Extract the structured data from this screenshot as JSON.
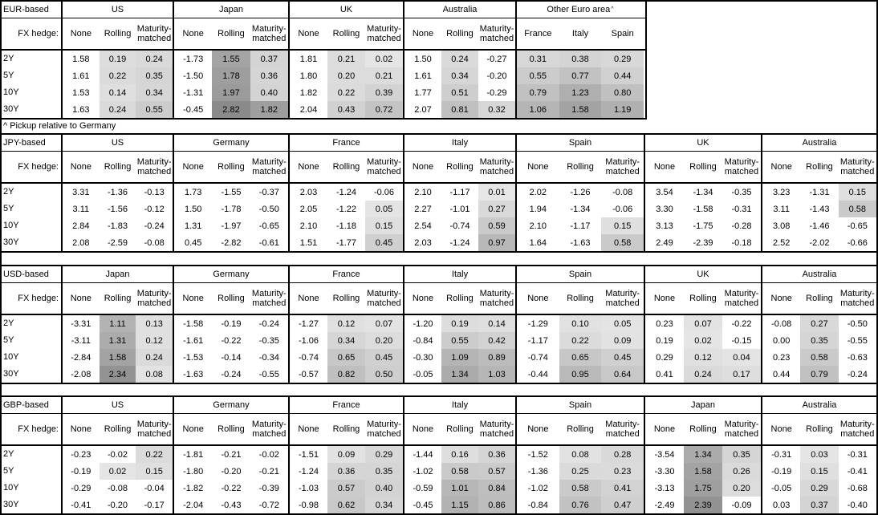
{
  "note": "^ Pickup relative to Germany",
  "labels": {
    "fx_hedge": "FX hedge:",
    "subcols": [
      "None",
      "Rolling",
      "Maturity-matched"
    ],
    "tenors": [
      "2Y",
      "5Y",
      "10Y",
      "30Y"
    ]
  },
  "heatmap": {
    "negative_color": "#ffffff",
    "border_color": "#000000",
    "text_color": "#000000",
    "stops": [
      [
        0,
        230
      ],
      [
        0.5,
        206
      ],
      [
        1.0,
        183
      ],
      [
        1.6,
        162
      ],
      [
        2.9,
        136
      ]
    ]
  },
  "tables": [
    {
      "base": "EUR-based",
      "groups": [
        {
          "name": "US",
          "shade_cols": [
            1,
            2
          ],
          "rows": [
            [
              "1.58",
              "0.19",
              "0.24"
            ],
            [
              "1.61",
              "0.22",
              "0.35"
            ],
            [
              "1.53",
              "0.14",
              "0.34"
            ],
            [
              "1.63",
              "0.24",
              "0.55"
            ]
          ]
        },
        {
          "name": "Japan",
          "shade_cols": [
            1,
            2
          ],
          "rows": [
            [
              "-1.73",
              "1.55",
              "0.37"
            ],
            [
              "-1.50",
              "1.78",
              "0.36"
            ],
            [
              "-1.31",
              "1.97",
              "0.40"
            ],
            [
              "-0.45",
              "2.82",
              "1.82"
            ]
          ]
        },
        {
          "name": "UK",
          "shade_cols": [
            1,
            2
          ],
          "rows": [
            [
              "1.81",
              "0.21",
              "0.02"
            ],
            [
              "1.80",
              "0.20",
              "0.21"
            ],
            [
              "1.82",
              "0.22",
              "0.39"
            ],
            [
              "2.04",
              "0.43",
              "0.72"
            ]
          ]
        },
        {
          "name": "Australia",
          "shade_cols": [
            1,
            2
          ],
          "rows": [
            [
              "1.50",
              "0.24",
              "-0.27"
            ],
            [
              "1.61",
              "0.34",
              "-0.20"
            ],
            [
              "1.77",
              "0.51",
              "-0.29"
            ],
            [
              "2.07",
              "0.81",
              "0.32"
            ]
          ]
        },
        {
          "name": "Other Euro area",
          "sup": "^",
          "cols": [
            "France",
            "Italy",
            "Spain"
          ],
          "shade_cols": [
            0,
            1,
            2
          ],
          "rows": [
            [
              "0.31",
              "0.38",
              "0.29"
            ],
            [
              "0.55",
              "0.77",
              "0.44"
            ],
            [
              "0.79",
              "1.23",
              "0.80"
            ],
            [
              "1.06",
              "1.58",
              "1.19"
            ]
          ]
        }
      ]
    },
    {
      "base": "JPY-based",
      "groups": [
        {
          "name": "US",
          "shade_cols": [
            1,
            2
          ],
          "rows": [
            [
              "3.31",
              "-1.36",
              "-0.13"
            ],
            [
              "3.11",
              "-1.56",
              "-0.12"
            ],
            [
              "2.84",
              "-1.83",
              "-0.24"
            ],
            [
              "2.08",
              "-2.59",
              "-0.08"
            ]
          ]
        },
        {
          "name": "Germany",
          "shade_cols": [
            1,
            2
          ],
          "rows": [
            [
              "1.73",
              "-1.55",
              "-0.37"
            ],
            [
              "1.50",
              "-1.78",
              "-0.50"
            ],
            [
              "1.31",
              "-1.97",
              "-0.65"
            ],
            [
              "0.45",
              "-2.82",
              "-0.61"
            ]
          ]
        },
        {
          "name": "France",
          "shade_cols": [
            1,
            2
          ],
          "rows": [
            [
              "2.03",
              "-1.24",
              "-0.06"
            ],
            [
              "2.05",
              "-1.22",
              "0.05"
            ],
            [
              "2.10",
              "-1.18",
              "0.15"
            ],
            [
              "1.51",
              "-1.77",
              "0.45"
            ]
          ]
        },
        {
          "name": "Italy",
          "shade_cols": [
            1,
            2
          ],
          "rows": [
            [
              "2.10",
              "-1.17",
              "0.01"
            ],
            [
              "2.27",
              "-1.01",
              "0.27"
            ],
            [
              "2.54",
              "-0.74",
              "0.59"
            ],
            [
              "2.03",
              "-1.24",
              "0.97"
            ]
          ]
        },
        {
          "name": "Spain",
          "shade_cols": [
            1,
            2
          ],
          "rows": [
            [
              "2.02",
              "-1.26",
              "-0.08"
            ],
            [
              "1.94",
              "-1.34",
              "-0.06"
            ],
            [
              "2.10",
              "-1.17",
              "0.15"
            ],
            [
              "1.64",
              "-1.63",
              "0.58"
            ]
          ]
        },
        {
          "name": "UK",
          "shade_cols": [
            1,
            2
          ],
          "rows": [
            [
              "3.54",
              "-1.34",
              "-0.35"
            ],
            [
              "3.30",
              "-1.58",
              "-0.31"
            ],
            [
              "3.13",
              "-1.75",
              "-0.28"
            ],
            [
              "2.49",
              "-2.39",
              "-0.18"
            ]
          ]
        },
        {
          "name": "Australia",
          "shade_cols": [
            1,
            2
          ],
          "rows": [
            [
              "3.23",
              "-1.31",
              "0.15"
            ],
            [
              "3.11",
              "-1.43",
              "0.58"
            ],
            [
              "3.08",
              "-1.46",
              "-0.65"
            ],
            [
              "2.52",
              "-2.02",
              "-0.66"
            ]
          ]
        }
      ]
    },
    {
      "base": "USD-based",
      "groups": [
        {
          "name": "Japan",
          "shade_cols": [
            1,
            2
          ],
          "rows": [
            [
              "-3.31",
              "1.11",
              "0.13"
            ],
            [
              "-3.11",
              "1.31",
              "0.12"
            ],
            [
              "-2.84",
              "1.58",
              "0.24"
            ],
            [
              "-2.08",
              "2.34",
              "0.08"
            ]
          ]
        },
        {
          "name": "Germany",
          "shade_cols": [
            1,
            2
          ],
          "rows": [
            [
              "-1.58",
              "-0.19",
              "-0.24"
            ],
            [
              "-1.61",
              "-0.22",
              "-0.35"
            ],
            [
              "-1.53",
              "-0.14",
              "-0.34"
            ],
            [
              "-1.63",
              "-0.24",
              "-0.55"
            ]
          ]
        },
        {
          "name": "France",
          "shade_cols": [
            1,
            2
          ],
          "rows": [
            [
              "-1.27",
              "0.12",
              "0.07"
            ],
            [
              "-1.06",
              "0.34",
              "0.20"
            ],
            [
              "-0.74",
              "0.65",
              "0.45"
            ],
            [
              "-0.57",
              "0.82",
              "0.50"
            ]
          ]
        },
        {
          "name": "Italy",
          "shade_cols": [
            1,
            2
          ],
          "rows": [
            [
              "-1.20",
              "0.19",
              "0.14"
            ],
            [
              "-0.84",
              "0.55",
              "0.42"
            ],
            [
              "-0.30",
              "1.09",
              "0.89"
            ],
            [
              "-0.05",
              "1.34",
              "1.03"
            ]
          ]
        },
        {
          "name": "Spain",
          "shade_cols": [
            1,
            2
          ],
          "rows": [
            [
              "-1.29",
              "0.10",
              "0.05"
            ],
            [
              "-1.17",
              "0.22",
              "0.09"
            ],
            [
              "-0.74",
              "0.65",
              "0.45"
            ],
            [
              "-0.44",
              "0.95",
              "0.64"
            ]
          ]
        },
        {
          "name": "UK",
          "shade_cols": [
            1,
            2
          ],
          "rows": [
            [
              "0.23",
              "0.07",
              "-0.22"
            ],
            [
              "0.19",
              "0.02",
              "-0.15"
            ],
            [
              "0.29",
              "0.12",
              "0.04"
            ],
            [
              "0.41",
              "0.24",
              "0.17"
            ]
          ]
        },
        {
          "name": "Australia",
          "shade_cols": [
            1,
            2
          ],
          "rows": [
            [
              "-0.08",
              "0.27",
              "-0.50"
            ],
            [
              "0.00",
              "0.35",
              "-0.55"
            ],
            [
              "0.23",
              "0.58",
              "-0.63"
            ],
            [
              "0.44",
              "0.79",
              "-0.24"
            ]
          ]
        }
      ]
    },
    {
      "base": "GBP-based",
      "groups": [
        {
          "name": "US",
          "shade_cols": [
            1,
            2
          ],
          "rows": [
            [
              "-0.23",
              "-0.02",
              "0.22"
            ],
            [
              "-0.19",
              "0.02",
              "0.15"
            ],
            [
              "-0.29",
              "-0.08",
              "-0.04"
            ],
            [
              "-0.41",
              "-0.20",
              "-0.17"
            ]
          ]
        },
        {
          "name": "Germany",
          "shade_cols": [
            1,
            2
          ],
          "rows": [
            [
              "-1.81",
              "-0.21",
              "-0.02"
            ],
            [
              "-1.80",
              "-0.20",
              "-0.21"
            ],
            [
              "-1.82",
              "-0.22",
              "-0.39"
            ],
            [
              "-2.04",
              "-0.43",
              "-0.72"
            ]
          ]
        },
        {
          "name": "France",
          "shade_cols": [
            1,
            2
          ],
          "rows": [
            [
              "-1.51",
              "0.09",
              "0.29"
            ],
            [
              "-1.24",
              "0.36",
              "0.35"
            ],
            [
              "-1.03",
              "0.57",
              "0.40"
            ],
            [
              "-0.98",
              "0.62",
              "0.34"
            ]
          ]
        },
        {
          "name": "Italy",
          "shade_cols": [
            1,
            2
          ],
          "rows": [
            [
              "-1.44",
              "0.16",
              "0.36"
            ],
            [
              "-1.02",
              "0.58",
              "0.57"
            ],
            [
              "-0.59",
              "1.01",
              "0.84"
            ],
            [
              "-0.45",
              "1.15",
              "0.86"
            ]
          ]
        },
        {
          "name": "Spain",
          "shade_cols": [
            1,
            2
          ],
          "rows": [
            [
              "-1.52",
              "0.08",
              "0.28"
            ],
            [
              "-1.36",
              "0.25",
              "0.23"
            ],
            [
              "-1.02",
              "0.58",
              "0.41"
            ],
            [
              "-0.84",
              "0.76",
              "0.47"
            ]
          ]
        },
        {
          "name": "Japan",
          "shade_cols": [
            1,
            2
          ],
          "rows": [
            [
              "-3.54",
              "1.34",
              "0.35"
            ],
            [
              "-3.30",
              "1.58",
              "0.26"
            ],
            [
              "-3.13",
              "1.75",
              "0.20"
            ],
            [
              "-2.49",
              "2.39",
              "-0.09"
            ]
          ]
        },
        {
          "name": "Australia",
          "shade_cols": [
            1,
            2
          ],
          "rows": [
            [
              "-0.31",
              "0.03",
              "-0.31"
            ],
            [
              "-0.19",
              "0.15",
              "-0.41"
            ],
            [
              "-0.05",
              "0.29",
              "-0.68"
            ],
            [
              "0.03",
              "0.37",
              "-0.40"
            ]
          ]
        }
      ]
    }
  ]
}
